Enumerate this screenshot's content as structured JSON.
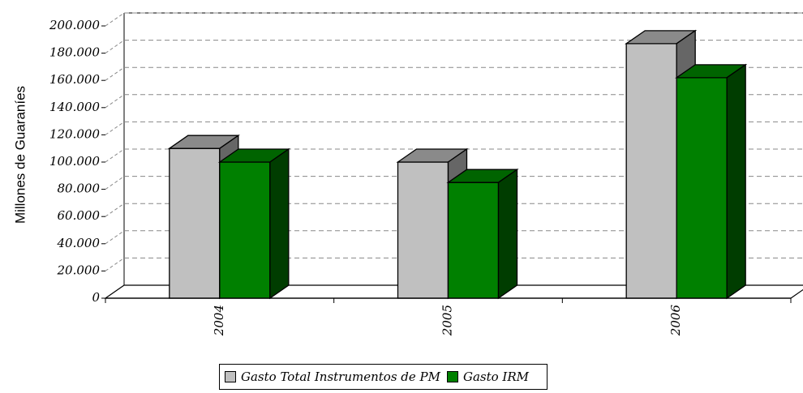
{
  "chart_data": {
    "type": "bar",
    "categories": [
      "2004",
      "2005",
      "2006"
    ],
    "series": [
      {
        "name": "Gasto Total Instrumentos de PM",
        "values": [
          110000,
          100000,
          187000
        ],
        "color": "#c0c0c0",
        "top_color": "#8a8a8a",
        "side_color": "#666666"
      },
      {
        "name": "Gasto IRM",
        "values": [
          100000,
          85000,
          162000
        ],
        "color": "#008000",
        "top_color": "#006400",
        "side_color": "#003d00"
      }
    ],
    "y_ticks": [
      "0",
      "20.000",
      "40.000",
      "60.000",
      "80.000",
      "100.000",
      "120.000",
      "140.000",
      "160.000",
      "180.000",
      "200.000"
    ],
    "ylim": [
      0,
      200000
    ],
    "ylabel": "Millones de Guaraníes",
    "xlabel": "",
    "grid": true,
    "legend_position": "bottom"
  }
}
